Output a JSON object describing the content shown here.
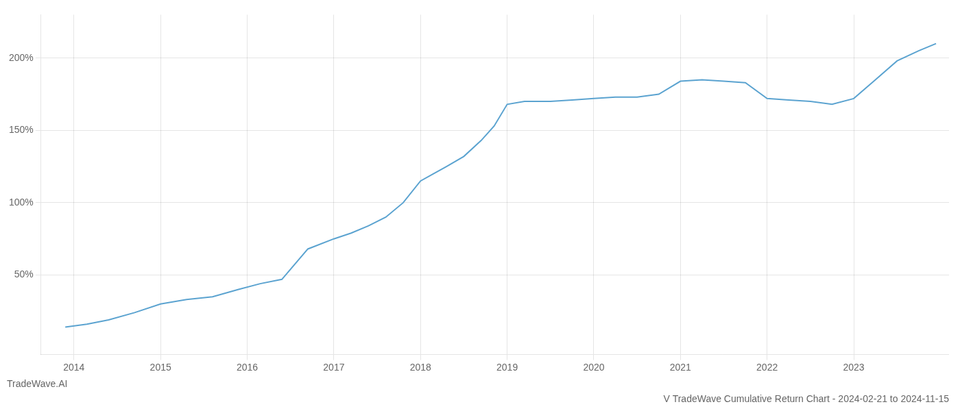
{
  "chart_data": {
    "type": "line",
    "title": "V TradeWave Cumulative Return Chart - 2024-02-21 to 2024-11-15",
    "annotations": [
      "TradeWave.AI"
    ],
    "x": [
      2013.9,
      2014.15,
      2014.4,
      2014.7,
      2015.0,
      2015.3,
      2015.6,
      2015.9,
      2016.15,
      2016.4,
      2016.7,
      2017.0,
      2017.2,
      2017.4,
      2017.6,
      2017.8,
      2018.0,
      2018.15,
      2018.3,
      2018.5,
      2018.7,
      2018.85,
      2019.0,
      2019.2,
      2019.5,
      2019.75,
      2020.0,
      2020.25,
      2020.5,
      2020.75,
      2021.0,
      2021.25,
      2021.5,
      2021.75,
      2022.0,
      2022.25,
      2022.5,
      2022.75,
      2023.0,
      2023.25,
      2023.5,
      2023.75,
      2023.95
    ],
    "values": [
      14,
      16,
      19,
      24,
      30,
      33,
      35,
      40,
      44,
      47,
      68,
      75,
      79,
      84,
      90,
      100,
      115,
      120,
      125,
      132,
      143,
      153,
      168,
      170,
      170,
      171,
      172,
      173,
      173,
      175,
      184,
      185,
      184,
      183,
      172,
      171,
      170,
      168,
      172,
      185,
      198,
      205,
      210
    ],
    "color": "#5ba3d0",
    "xlim": [
      2013.62,
      2024.1
    ],
    "ylim": [
      -5,
      230
    ],
    "xticks": [
      2014,
      2015,
      2016,
      2017,
      2018,
      2019,
      2020,
      2021,
      2022,
      2023
    ],
    "yticks": [
      {
        "value": 50,
        "label": "50%"
      },
      {
        "value": 100,
        "label": "100%"
      },
      {
        "value": 150,
        "label": "150%"
      },
      {
        "value": 200,
        "label": "200%"
      }
    ],
    "grid": true
  }
}
